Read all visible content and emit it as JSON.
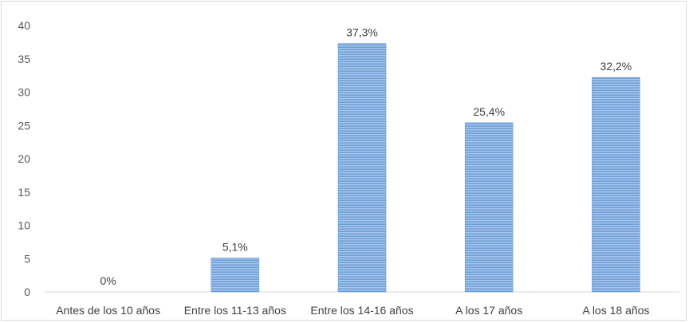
{
  "chart_data": {
    "type": "bar",
    "categories": [
      "Antes de los 10 años",
      "Entre los 11-13 años",
      "Entre los 14-16 años",
      "A los 17 años",
      "A los 18 años"
    ],
    "values": [
      0,
      5.1,
      37.3,
      25.4,
      32.2
    ],
    "data_labels": [
      "0%",
      "5,1%",
      "37,3%",
      "25,4%",
      "32,2%"
    ],
    "title": "",
    "xlabel": "",
    "ylabel": "",
    "ylim": [
      0,
      40
    ],
    "yticks": [
      0,
      5,
      10,
      15,
      20,
      25,
      30,
      35,
      40
    ],
    "grid": false,
    "legend": "none",
    "colors": {
      "bar": "#6f9fd8",
      "bar_stripe": "#a9c7ec",
      "axis": "#d9d9d9",
      "text": "#404040"
    }
  }
}
